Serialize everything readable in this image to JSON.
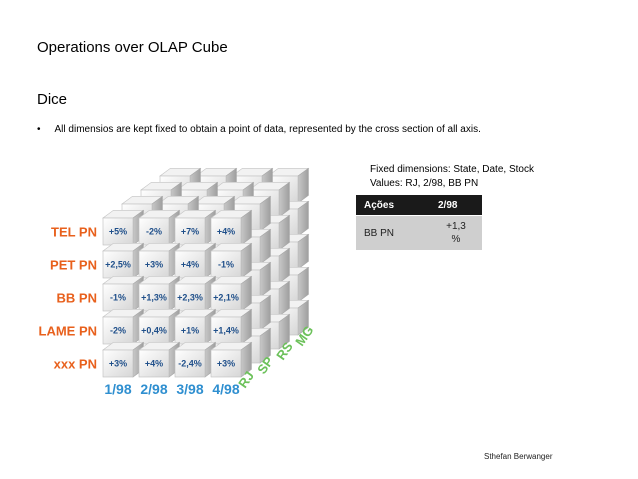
{
  "slide": {
    "title": "Operations over OLAP Cube",
    "subtitle": "Dice",
    "bullet_marker": "•",
    "bullet_text": "All dimensios are kept fixed to obtain a point of data, represented by the cross section of all axis.",
    "fixed_line1": "Fixed dimensions: State, Date, Stock",
    "fixed_line2": "Values: RJ, 2/98, BB PN",
    "author": "Sthefan Berwanger"
  },
  "table": {
    "headers": [
      "Ações",
      "2/98"
    ],
    "row": [
      "BB PN",
      "+1,3\n%"
    ]
  },
  "cube": {
    "rows": [
      "TEL PN",
      "PET PN",
      "BB PN",
      "LAME PN",
      "xxx  PN"
    ],
    "columns": [
      "1/98",
      "2/98",
      "3/98",
      "4/98"
    ],
    "depth": [
      "RJ",
      "SP",
      "RS",
      "MG"
    ],
    "values": [
      [
        "+5%",
        "-2%",
        "+7%",
        "+4%"
      ],
      [
        "+2,5%",
        "+3%",
        "+4%",
        "-1%"
      ],
      [
        "-1%",
        "+1,3%",
        "+2,3%",
        "+2,1%"
      ],
      [
        "-2%",
        "+0,4%",
        "+1%",
        "+1,4%"
      ],
      [
        "+3%",
        "+4%",
        "-2,4%",
        "+3%"
      ]
    ],
    "colors": {
      "row_labels": "#e8601c",
      "column_labels": "#2f8fd0",
      "depth_labels": "#6cc15a",
      "values": "#1f4f8a"
    }
  }
}
